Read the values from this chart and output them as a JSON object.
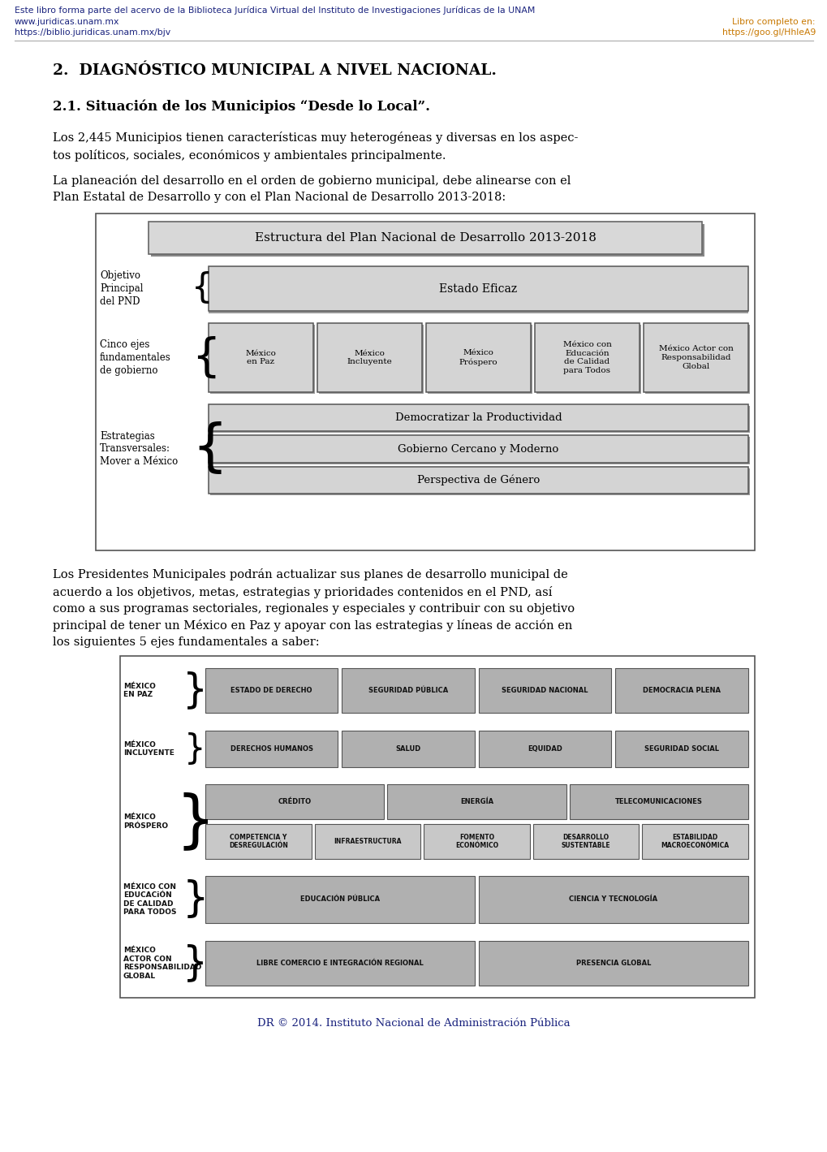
{
  "bg_color": "#ffffff",
  "header_line1": "Este libro forma parte del acervo de la Biblioteca Jurídica Virtual del Instituto de Investigaciones Jurídicas de la UNAM",
  "header_line2_left": "www.juridicas.unam.mx",
  "header_line3_left": "https://biblio.juridicas.unam.mx/bjv",
  "header_line2_right": "Libro completo en:",
  "header_line3_right": "https://goo.gl/HhleA9",
  "header_color_blue": "#1a237e",
  "header_color_orange": "#c87800",
  "section_title": "2.  DIAGNÓSTICO MUNICIPAL A NIVEL NACIONAL.",
  "subsection_title": "2.1. Situación de los Municipios “Desde lo Local”.",
  "para1": "Los 2,445 Municipios tienen características muy heterogéneas y diversas en los aspec-\ntos políticos, sociales, económicos y ambientales principalmente.",
  "para2": "La planeación del desarrollo en el orden de gobierno municipal, debe alinearse con el\nPlan Estatal de Desarrollo y con el Plan Nacional de Desarrollo 2013-2018:",
  "diagram1_title": "Estructura del Plan Nacional de Desarrollo 2013-2018",
  "label_obj": "Objetivo\nPrincipal\ndel PND",
  "label_cinco": "Cinco ejes\nfundamentales\nde gobierno",
  "label_estrategias": "Estrategias\nTransversales:\nMover a México",
  "box_estado": "Estado Eficaz",
  "boxes_cinco": [
    "México\nen Paz",
    "México\nIncluyente",
    "México\nPróspero",
    "México con\nEducación\nde Calidad\npara Todos",
    "México Actor con\nResponsabilidad\nGlobal"
  ],
  "box_democratizar": "Democratizar la Productividad",
  "box_gobierno": "Gobierno Cercano y Moderno",
  "box_perspectiva": "Perspectiva de Género",
  "para3": "Los Presidentes Municipales podrán actualizar sus planes de desarrollo municipal de\nacuerdo a los objetivos, metas, estrategias y prioridades contenidos en el PND, así\ncomo a sus programas sectoriales, regionales y especiales y contribuir con su objetivo\nprincipal de tener un México en Paz y apoyar con las estrategias y líneas de acción en\nlos siguientes 5 ejes fundamentales a saber:",
  "diag2_rows": [
    {
      "label": "MÉXICO\nEN PAZ",
      "boxes": [
        "ESTADO DE DERECHO",
        "SEGURIDAD PÚBLICA",
        "SEGURIDAD NACIONAL",
        "DEMOCRACIA PLENA"
      ]
    },
    {
      "label": "MÉXICO\nINCLUYENTE",
      "boxes": [
        "DERECHOS HUMANOS",
        "SALUD",
        "EQUIDAD",
        "SEGURIDAD SOCIAL"
      ]
    },
    {
      "label": "MÉXICO\nPRÓSPERO",
      "boxes_top": [
        "CRÉDITO",
        "ENERGÍA",
        "TELECOMUNICACIONES"
      ],
      "boxes_bot": [
        "COMPETENCIA Y\nDESREGULACIÓN",
        "INFRAESTRUCTURA",
        "FOMENTO\nECONÓMICO",
        "DESARROLLO\nSUSTENTABLE",
        "ESTABILIDAD\nMACROECONÓMICA"
      ]
    },
    {
      "label": "MÉXICO CON\nEDUCACiÓN\nDE CALIDAD\nPARA TODOS",
      "boxes": [
        "EDUCACIÓN PÚBLICA",
        "CIENCIA Y TECNOLOGÍA"
      ]
    },
    {
      "label": "MÉXICO\nACTOR CON\nRESPONSABILIDAD\nGLOBAL",
      "boxes": [
        "LIBRE COMERCIO E INTEGRACIÓN REGIONAL",
        "PRESENCIA GLOBAL"
      ]
    }
  ],
  "footer": "DR © 2014. Instituto Nacional de Administración Pública",
  "footer_color": "#1a237e",
  "diag1_fill": "#d4d4d4",
  "diag1_edge": "#555555",
  "diag2_fill": "#b0b0b0",
  "diag2_edge": "#555555",
  "diag2_fill_light": "#c8c8c8"
}
